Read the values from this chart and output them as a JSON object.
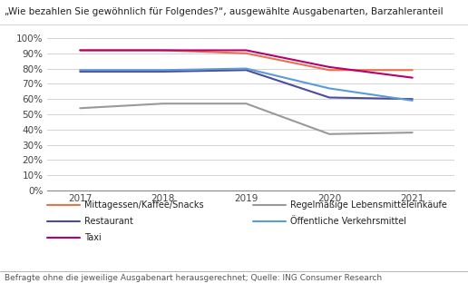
{
  "title": "„Wie bezahlen Sie gewöhnlich für Folgendes?“, ausgewählte Ausgabenarten, Barzahleranteil",
  "years": [
    2017,
    2018,
    2019,
    2020,
    2021
  ],
  "series": [
    {
      "label": "Mittagessen/Kaffee/Snacks",
      "color": "#E8734A",
      "values": [
        0.92,
        0.92,
        0.9,
        0.79,
        0.79
      ]
    },
    {
      "label": "Regelmäßige Lebensmitteleinkäufe",
      "color": "#999999",
      "values": [
        0.54,
        0.57,
        0.57,
        0.37,
        0.38
      ]
    },
    {
      "label": "Restaurant",
      "color": "#4B4B9F",
      "values": [
        0.78,
        0.78,
        0.79,
        0.61,
        0.6
      ]
    },
    {
      "label": "Öffentliche Verkehrsmittel",
      "color": "#5B9BD5",
      "values": [
        0.79,
        0.79,
        0.8,
        0.67,
        0.59
      ]
    },
    {
      "label": "Taxi",
      "color": "#B5006E",
      "values": [
        0.92,
        0.92,
        0.92,
        0.81,
        0.74
      ]
    }
  ],
  "legend_col1": [
    {
      "label": "Mittagessen/Kaffee/Snacks",
      "color": "#E8734A"
    },
    {
      "label": "Restaurant",
      "color": "#4B4B9F"
    },
    {
      "label": "Taxi",
      "color": "#B5006E"
    }
  ],
  "legend_col2": [
    {
      "label": "Regelmäßige Lebensmitteleinkäufe",
      "color": "#999999"
    },
    {
      "label": "Öffentliche Verkehrsmittel",
      "color": "#5B9BD5"
    }
  ],
  "footer": "Befragte ohne die jeweilige Ausgabenart herausgerechnet; Quelle: ING Consumer Research",
  "ylim": [
    0.0,
    1.0
  ],
  "yticks": [
    0.0,
    0.1,
    0.2,
    0.3,
    0.4,
    0.5,
    0.6,
    0.7,
    0.8,
    0.9,
    1.0
  ],
  "background_color": "#FFFFFF",
  "grid_color": "#CCCCCC",
  "title_fontsize": 7.5,
  "axis_fontsize": 7.5,
  "legend_fontsize": 7.0,
  "footer_fontsize": 6.5
}
